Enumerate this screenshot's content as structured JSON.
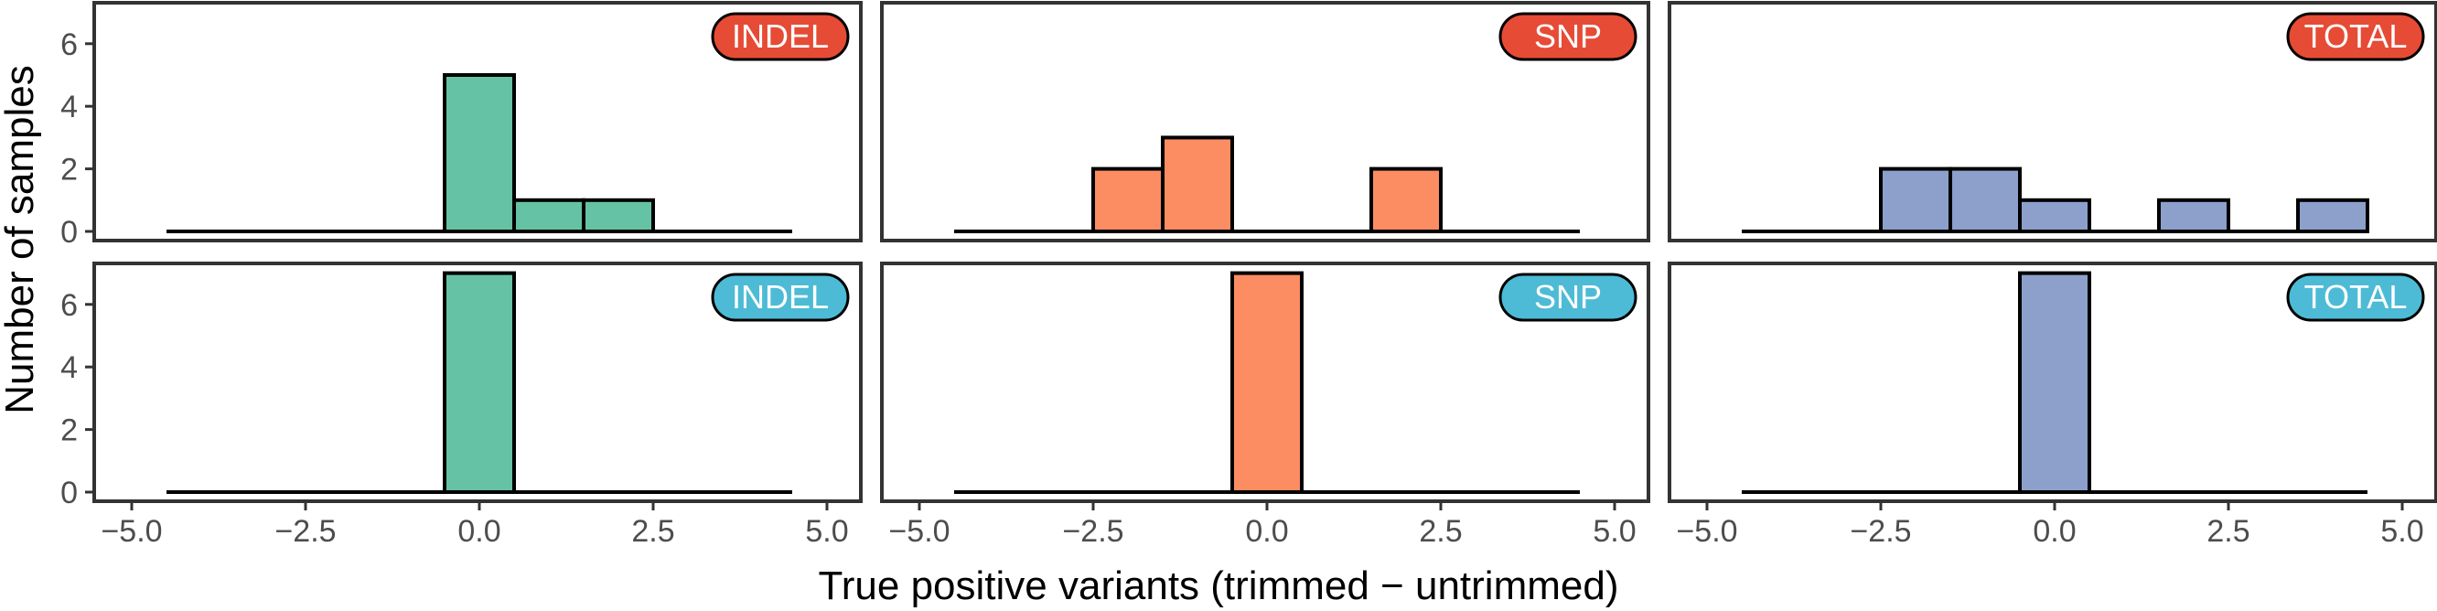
{
  "chart_data": {
    "type": "bar",
    "layout": "facet-grid",
    "xlabel": "True positive variants (trimmed − untrimmed)",
    "ylabel": "Number of samples",
    "xlim": [
      -5.0,
      5.0
    ],
    "ylim": [
      0,
      7
    ],
    "x_ticks": [
      -5.0,
      -2.5,
      0.0,
      2.5,
      5.0
    ],
    "x_tick_labels": [
      "−5.0",
      "−2.5",
      "0.0",
      "2.5",
      "5.0"
    ],
    "y_ticks": [
      0,
      2,
      4,
      6
    ],
    "y_tick_labels": [
      "0",
      "2",
      "4",
      "6"
    ],
    "bin_width": 1,
    "bin_range": [
      -4.5,
      4.5
    ],
    "grid": false,
    "colors": {
      "INDEL": "#66c2a5",
      "SNP": "#fc8d62",
      "TOTAL": "#8da0cb",
      "badge_top": "#e64b35",
      "badge_bottom": "#4dbbd5"
    },
    "panels": [
      {
        "row": 0,
        "col": 0,
        "label": "INDEL",
        "fill": "#66c2a5",
        "badge": "#e64b35",
        "bins": [
          {
            "x": 0,
            "count": 5
          },
          {
            "x": 1,
            "count": 1
          },
          {
            "x": 2,
            "count": 1
          }
        ]
      },
      {
        "row": 0,
        "col": 1,
        "label": "SNP",
        "fill": "#fc8d62",
        "badge": "#e64b35",
        "bins": [
          {
            "x": -2,
            "count": 2
          },
          {
            "x": -1,
            "count": 3
          },
          {
            "x": 2,
            "count": 2
          }
        ]
      },
      {
        "row": 0,
        "col": 2,
        "label": "TOTAL",
        "fill": "#8da0cb",
        "badge": "#e64b35",
        "bins": [
          {
            "x": -2,
            "count": 2
          },
          {
            "x": -1,
            "count": 2
          },
          {
            "x": 0,
            "count": 1
          },
          {
            "x": 2,
            "count": 1
          },
          {
            "x": 4,
            "count": 1
          }
        ]
      },
      {
        "row": 1,
        "col": 0,
        "label": "INDEL",
        "fill": "#66c2a5",
        "badge": "#4dbbd5",
        "bins": [
          {
            "x": 0,
            "count": 7
          }
        ]
      },
      {
        "row": 1,
        "col": 1,
        "label": "SNP",
        "fill": "#fc8d62",
        "badge": "#4dbbd5",
        "bins": [
          {
            "x": 0,
            "count": 7
          }
        ]
      },
      {
        "row": 1,
        "col": 2,
        "label": "TOTAL",
        "fill": "#8da0cb",
        "badge": "#4dbbd5",
        "bins": [
          {
            "x": 0,
            "count": 7
          }
        ]
      }
    ]
  }
}
